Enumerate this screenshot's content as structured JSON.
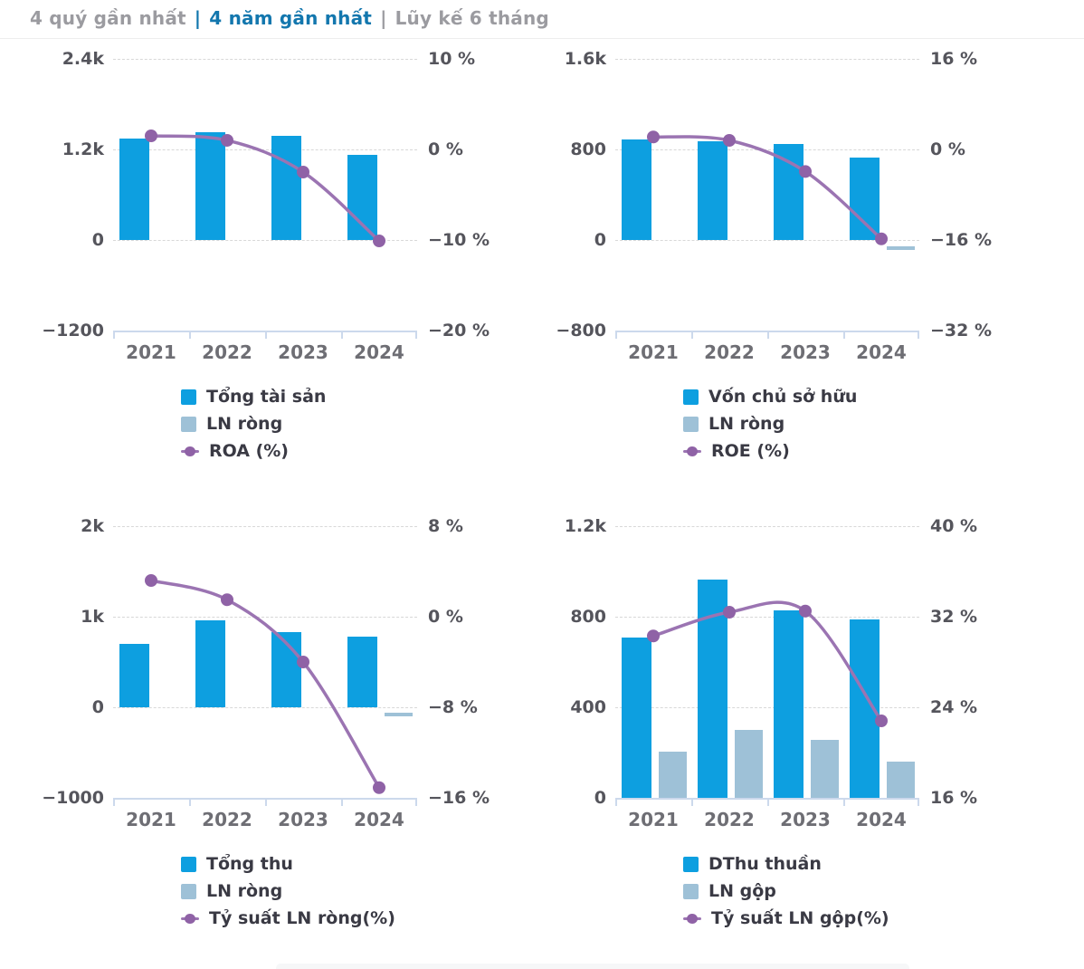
{
  "tabs": {
    "items": [
      {
        "label": "4 quý gần nhất",
        "active": false
      },
      {
        "label": "4 năm gần nhất",
        "active": true
      },
      {
        "label": "Lũy kế 6 tháng",
        "active": false
      }
    ],
    "separator": "|"
  },
  "colors": {
    "primary_bar": "#0D9FE0",
    "secondary_bar": "#9EC1D7",
    "line": "#9B74B2",
    "marker": "#8F62A6",
    "tab_active": "#1377AE",
    "tab_inactive": "#9B9BA0",
    "axis": "#ccd9ec",
    "gridline": "#d8d8d8"
  },
  "chart_data": [
    {
      "type": "bar+line",
      "categories": [
        "2021",
        "2022",
        "2023",
        "2024"
      ],
      "series": [
        {
          "name": "Tổng tài sản",
          "type": "bar",
          "role": "primary",
          "axis": "left",
          "values": [
            1340,
            1430,
            1380,
            1130
          ]
        },
        {
          "name": "LN ròng",
          "type": "bar",
          "role": "secondary",
          "style": "dash",
          "axis": "left",
          "values": [
            null,
            null,
            null,
            null
          ]
        },
        {
          "name": "ROA (%)",
          "type": "line",
          "axis": "right",
          "values": [
            1.5,
            1.0,
            -2.5,
            -10.1
          ]
        }
      ],
      "left_axis": {
        "ticks": [
          "2.4k",
          "1.2k",
          "0",
          "−1200"
        ],
        "max": 2400,
        "min": -1200
      },
      "right_axis": {
        "ticks": [
          "10 %",
          "0 %",
          "−10 %",
          "−20 %"
        ],
        "max": 10,
        "min": -20
      },
      "grid": "dashed",
      "legend_position": "bottom"
    },
    {
      "type": "bar+line",
      "categories": [
        "2021",
        "2022",
        "2023",
        "2024"
      ],
      "series": [
        {
          "name": "Vốn chủ sở hữu",
          "type": "bar",
          "role": "primary",
          "axis": "left",
          "values": [
            890,
            870,
            850,
            730
          ]
        },
        {
          "name": "LN ròng",
          "type": "bar",
          "role": "secondary",
          "style": "dash",
          "axis": "left",
          "values": [
            null,
            null,
            null,
            -75
          ]
        },
        {
          "name": "ROE (%)",
          "type": "line",
          "axis": "right",
          "values": [
            2.2,
            1.6,
            -3.9,
            -15.8
          ]
        }
      ],
      "left_axis": {
        "ticks": [
          "1.6k",
          "800",
          "0",
          "−800"
        ],
        "max": 1600,
        "min": -800
      },
      "right_axis": {
        "ticks": [
          "16 %",
          "0 %",
          "−16 %",
          "−32 %"
        ],
        "max": 16,
        "min": -32
      },
      "grid": "dashed",
      "legend_position": "bottom"
    },
    {
      "type": "bar+line",
      "categories": [
        "2021",
        "2022",
        "2023",
        "2024"
      ],
      "series": [
        {
          "name": "Tổng thu",
          "type": "bar",
          "role": "primary",
          "axis": "left",
          "values": [
            700,
            960,
            830,
            780
          ]
        },
        {
          "name": "LN ròng",
          "type": "bar",
          "role": "secondary",
          "style": "dash",
          "axis": "left",
          "values": [
            null,
            null,
            null,
            -80
          ]
        },
        {
          "name": "Tỷ suất LN ròng(%)",
          "type": "line",
          "axis": "right",
          "values": [
            3.2,
            1.5,
            -4.0,
            -15.1
          ]
        }
      ],
      "left_axis": {
        "ticks": [
          "2k",
          "1k",
          "0",
          "−1000"
        ],
        "max": 2000,
        "min": -1000
      },
      "right_axis": {
        "ticks": [
          "8 %",
          "0 %",
          "−8 %",
          "−16 %"
        ],
        "max": 8,
        "min": -16
      },
      "grid": "dashed",
      "legend_position": "bottom"
    },
    {
      "type": "bar+line",
      "categories": [
        "2021",
        "2022",
        "2023",
        "2024"
      ],
      "series": [
        {
          "name": "DThu thuần",
          "type": "bar",
          "role": "primary",
          "axis": "left",
          "values": [
            710,
            965,
            830,
            790
          ]
        },
        {
          "name": "LN gộp",
          "type": "bar",
          "role": "secondary",
          "style": "bar",
          "axis": "left",
          "values": [
            205,
            300,
            255,
            160
          ]
        },
        {
          "name": "Tỷ suất LN gộp(%)",
          "type": "line",
          "axis": "right",
          "values": [
            30.3,
            32.4,
            32.5,
            22.8
          ]
        }
      ],
      "left_axis": {
        "ticks": [
          "1.2k",
          "800",
          "400",
          "0"
        ],
        "max": 1200,
        "min": 0
      },
      "right_axis": {
        "ticks": [
          "40 %",
          "32 %",
          "24 %",
          "16 %"
        ],
        "max": 40,
        "min": 16
      },
      "grid": "dashed",
      "legend_position": "bottom"
    }
  ]
}
